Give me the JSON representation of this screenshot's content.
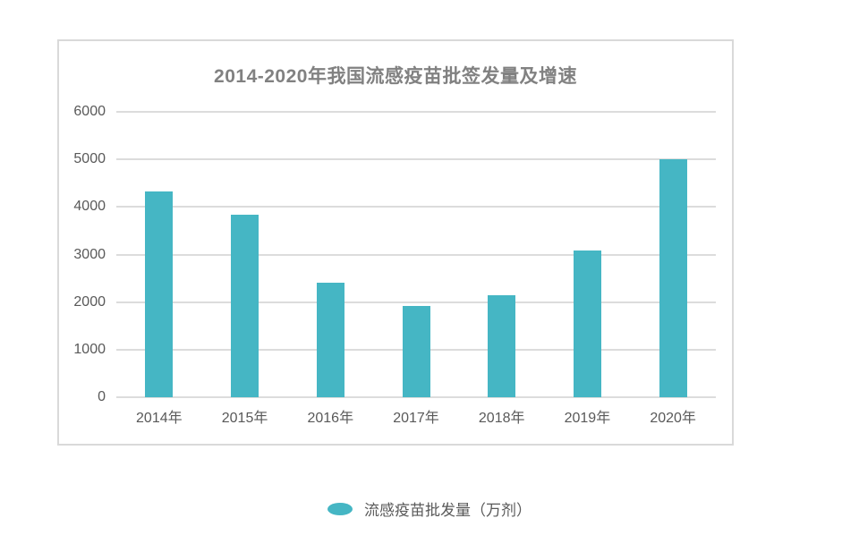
{
  "chart": {
    "colors": {
      "bar": "#45b6c4",
      "grid": "#dcdcdc",
      "panel_border": "#d9d9d9",
      "title_text": "#818181",
      "axis_text": "#595959"
    }
  },
  "chart_data": {
    "type": "bar",
    "title": "2014-2020年我国流感疫苗批签发量及增速",
    "categories": [
      "2014年",
      "2015年",
      "2016年",
      "2017年",
      "2018年",
      "2019年",
      "2020年"
    ],
    "values": [
      4330,
      3830,
      2410,
      1910,
      2140,
      3080,
      5000
    ],
    "series_name": "流感疫苗批发量（万剂）",
    "xlabel": "",
    "ylabel": "",
    "ylim": [
      0,
      6000
    ],
    "yticks": [
      0,
      1000,
      2000,
      3000,
      4000,
      5000,
      6000
    ],
    "grid": true,
    "legend_position": "bottom",
    "bar_color": "#45b6c4"
  }
}
